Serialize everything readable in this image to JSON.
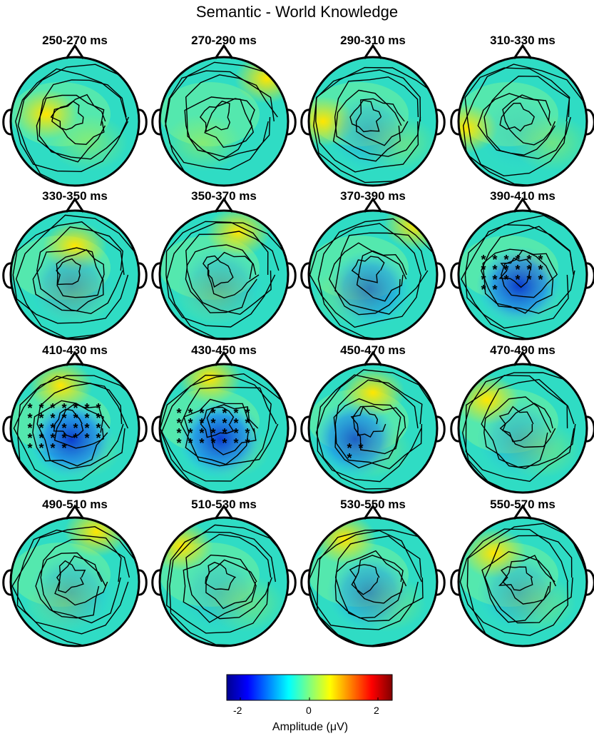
{
  "figure": {
    "title": "Semantic - World Knowledge",
    "panels": [
      {
        "label": "250-270 ms",
        "significant_electrodes": 0
      },
      {
        "label": "270-290 ms",
        "significant_electrodes": 0
      },
      {
        "label": "290-310 ms",
        "significant_electrodes": 0
      },
      {
        "label": "310-330 ms",
        "significant_electrodes": 0
      },
      {
        "label": "330-350 ms",
        "significant_electrodes": 0
      },
      {
        "label": "350-370 ms",
        "significant_electrodes": 0
      },
      {
        "label": "370-390 ms",
        "significant_electrodes": 0
      },
      {
        "label": "390-410 ms",
        "significant_electrodes": 20
      },
      {
        "label": "410-430 ms",
        "significant_electrodes": 32
      },
      {
        "label": "430-450 ms",
        "significant_electrodes": 28
      },
      {
        "label": "450-470 ms",
        "significant_electrodes": 3
      },
      {
        "label": "470-490 ms",
        "significant_electrodes": 0
      },
      {
        "label": "490-510 ms",
        "significant_electrodes": 0
      },
      {
        "label": "510-530 ms",
        "significant_electrodes": 0
      },
      {
        "label": "530-550 ms",
        "significant_electrodes": 0
      },
      {
        "label": "550-570 ms",
        "significant_electrodes": 0
      }
    ],
    "colorbar": {
      "ticks": [
        "-2",
        "0",
        "2"
      ],
      "label": "Amplitude (μV)",
      "range": [
        -2.6,
        2.6
      ],
      "colormap": [
        "#00008f",
        "#0000ff",
        "#00ffff",
        "#ffff00",
        "#ff0000",
        "#800000"
      ]
    }
  }
}
